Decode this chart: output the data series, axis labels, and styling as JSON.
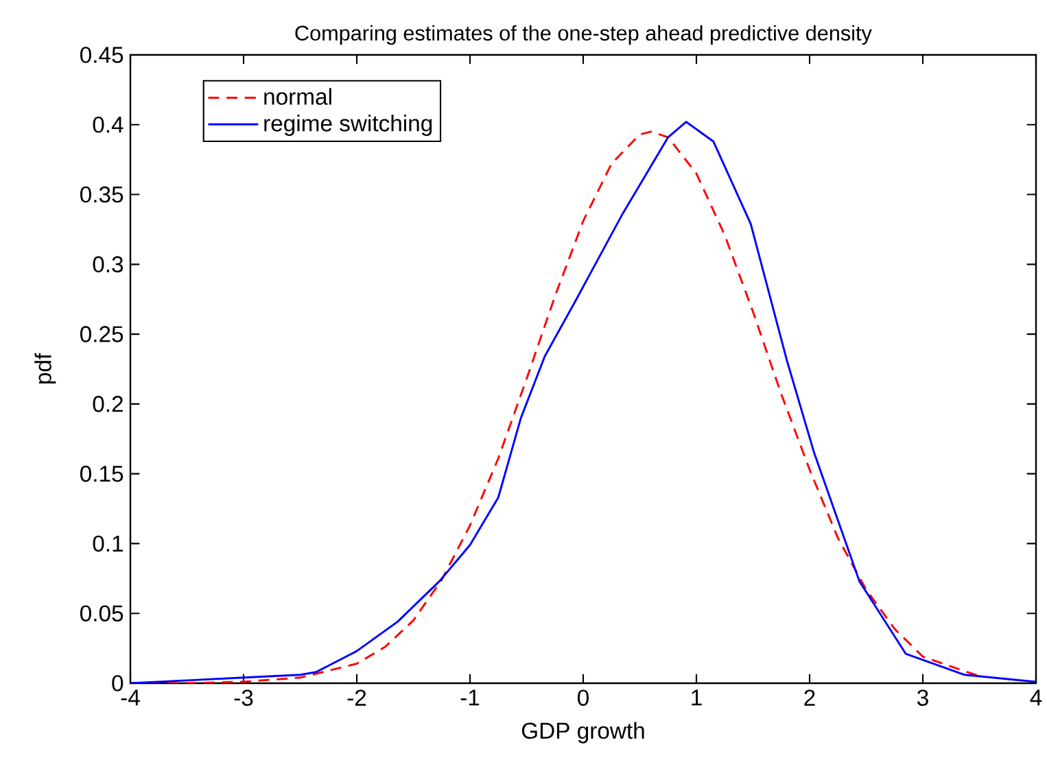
{
  "chart_data": {
    "type": "line",
    "title": "Comparing estimates of the one-step ahead predictive density",
    "xlabel": "GDP growth",
    "ylabel": "pdf",
    "xlim": [
      -4,
      4
    ],
    "xticks": [
      -4,
      -3,
      -2,
      -1,
      0,
      1,
      2,
      3,
      4
    ],
    "ylim": [
      0,
      0.45
    ],
    "yticks": [
      0,
      0.05,
      0.1,
      0.15,
      0.2,
      0.25,
      0.3,
      0.35,
      0.4,
      0.45
    ],
    "legend": "top left",
    "grid": false,
    "series": [
      {
        "name": "normal",
        "color": "#ff0000",
        "line_style": "dashed",
        "x": [
          -4,
          -3.5,
          -3,
          -2.5,
          -2,
          -1.75,
          -1.5,
          -1.25,
          -1,
          -0.75,
          -0.5,
          -0.25,
          0,
          0.25,
          0.5,
          0.6,
          0.75,
          1,
          1.25,
          1.5,
          1.75,
          2,
          2.25,
          2.5,
          2.75,
          3,
          3.5
        ],
        "values": [
          0,
          0,
          0.001,
          0.004,
          0.014,
          0.026,
          0.045,
          0.074,
          0.113,
          0.161,
          0.218,
          0.277,
          0.331,
          0.372,
          0.393,
          0.395,
          0.391,
          0.365,
          0.321,
          0.266,
          0.207,
          0.153,
          0.104,
          0.067,
          0.039,
          0.019,
          0.005
        ]
      },
      {
        "name": "regime switching",
        "color": "#0000ff",
        "line_style": "solid",
        "x": [
          -4,
          -3.5,
          -3,
          -2.5,
          -2.36,
          -2,
          -1.64,
          -1.27,
          -1,
          -0.75,
          -0.55,
          -0.34,
          -0.06,
          0.04,
          0.34,
          0.75,
          0.91,
          1.15,
          1.48,
          1.8,
          2.04,
          2.44,
          2.85,
          3.37,
          4
        ],
        "values": [
          0,
          0.002,
          0.004,
          0.006,
          0.008,
          0.023,
          0.044,
          0.073,
          0.099,
          0.133,
          0.19,
          0.234,
          0.275,
          0.29,
          0.335,
          0.391,
          0.402,
          0.388,
          0.329,
          0.231,
          0.165,
          0.073,
          0.021,
          0.006,
          0.001
        ]
      }
    ]
  }
}
